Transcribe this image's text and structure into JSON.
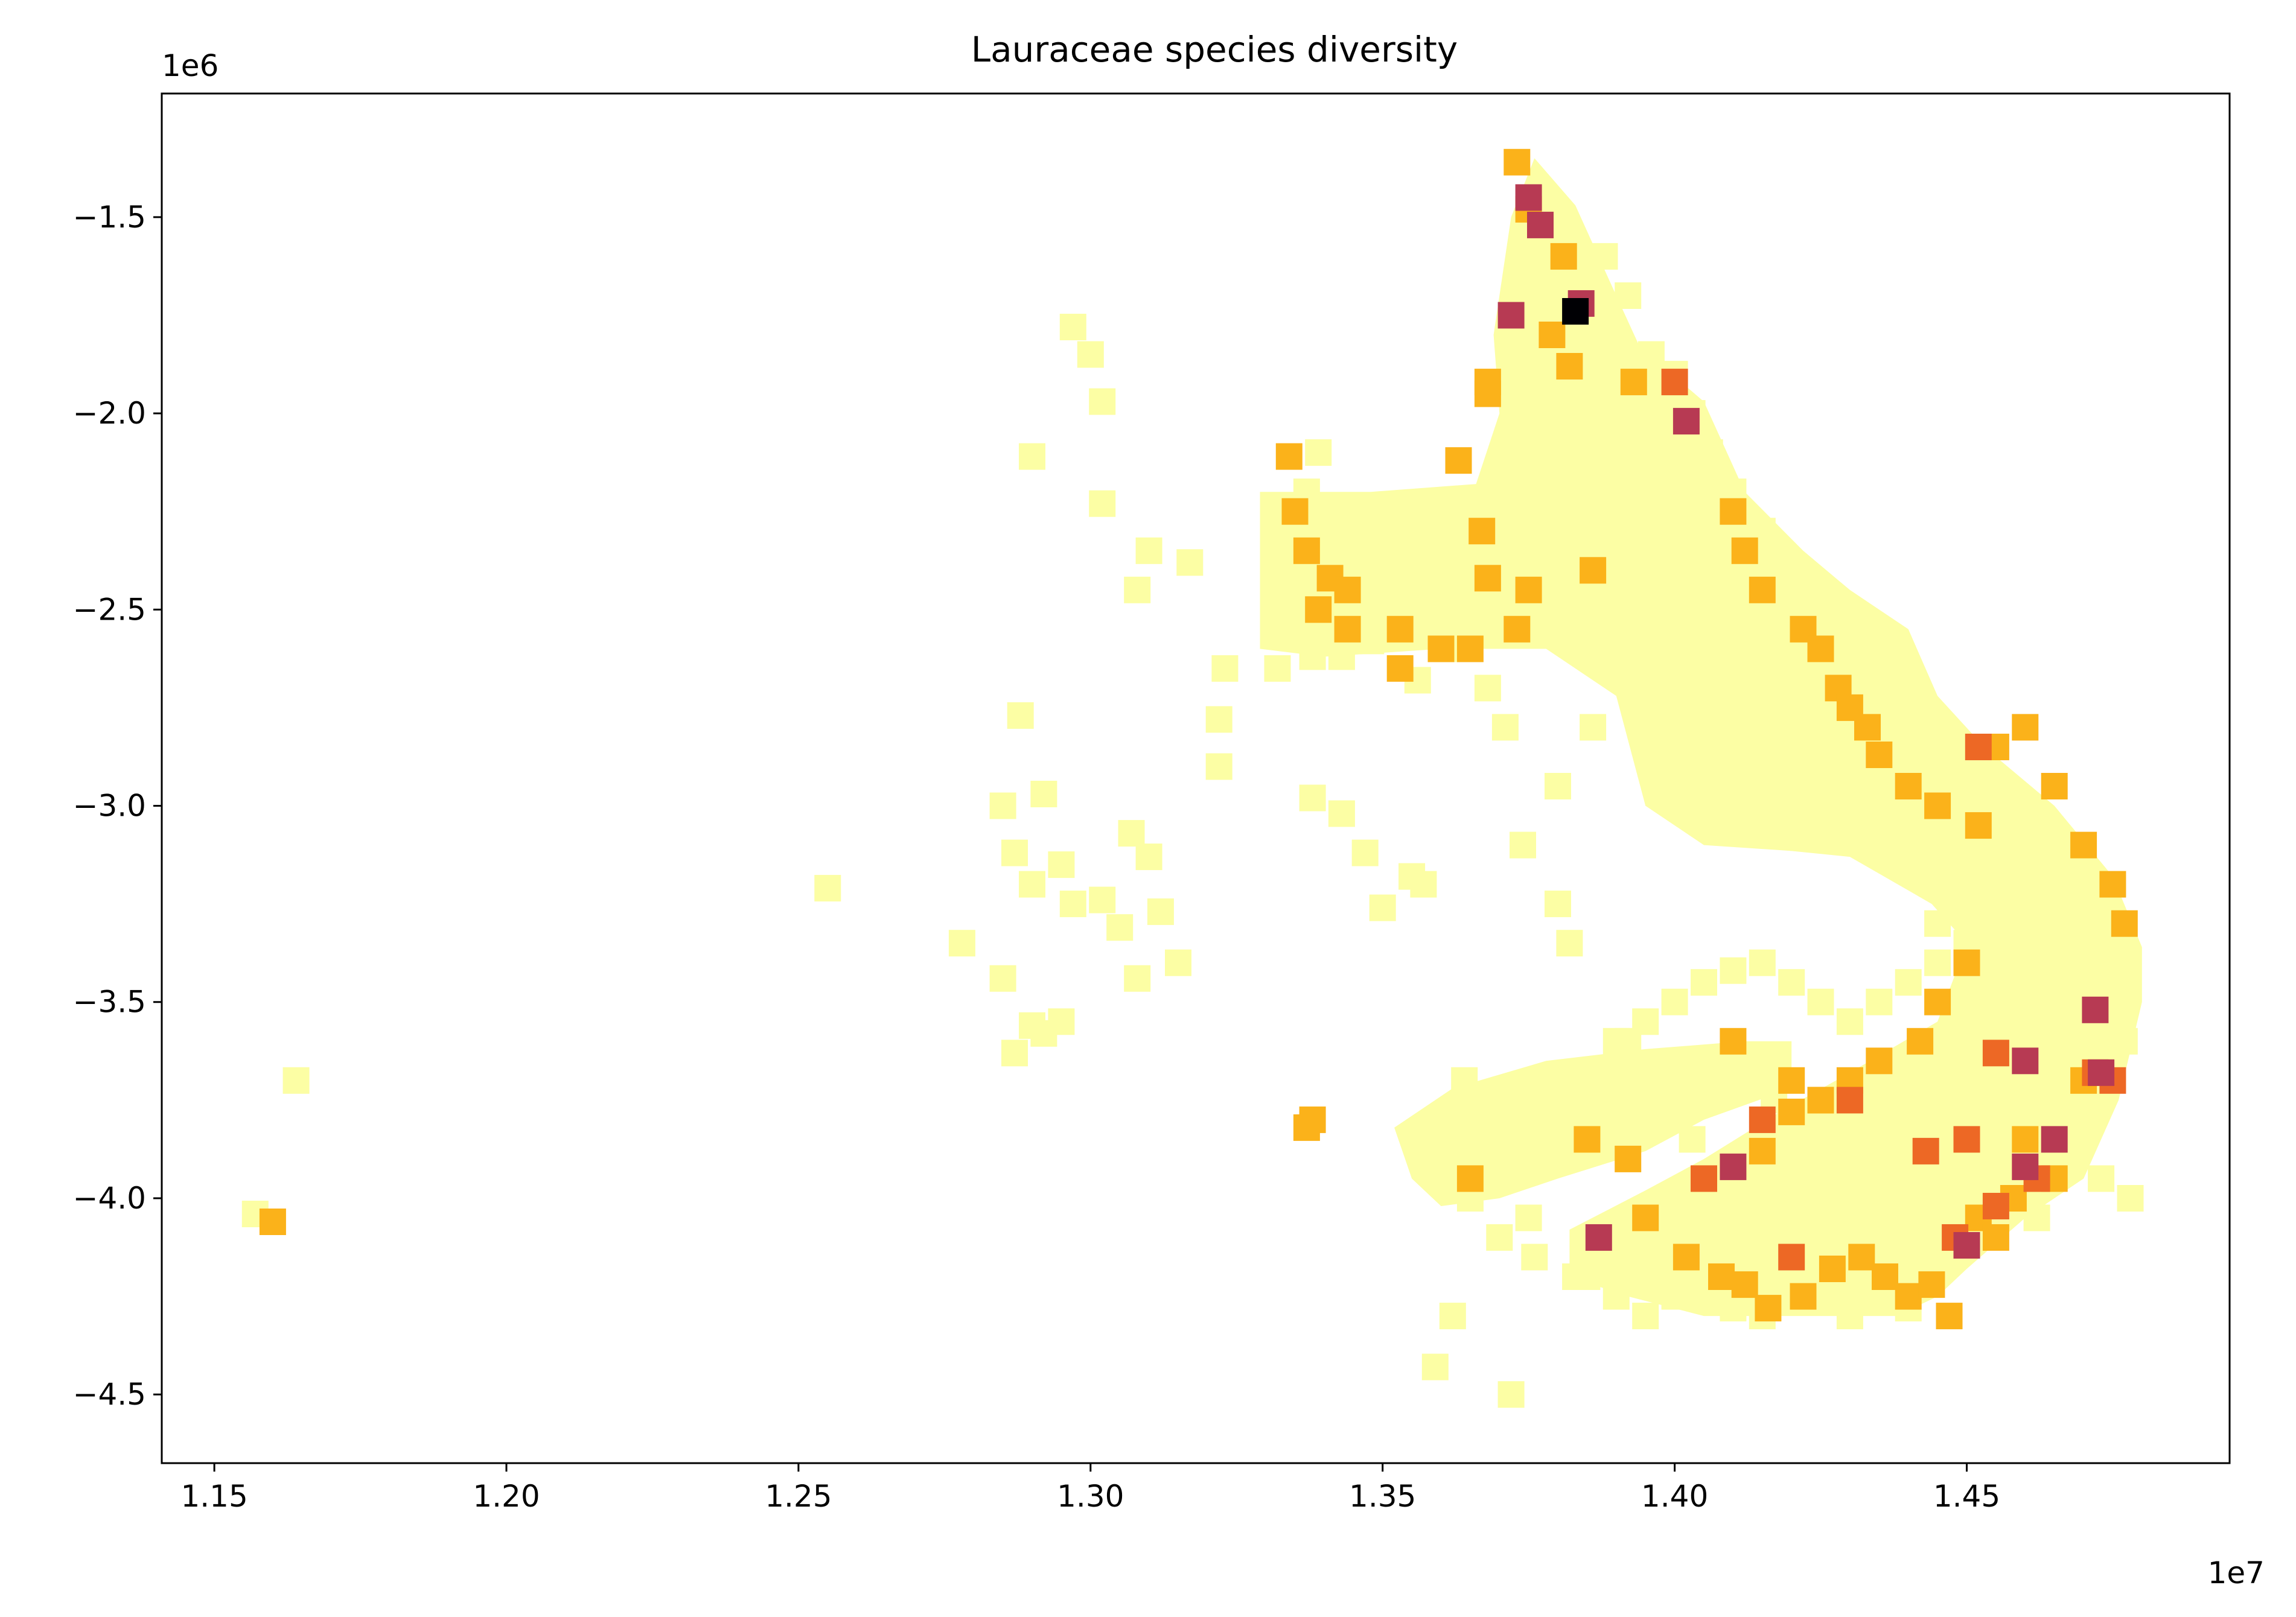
{
  "chart_data": {
    "type": "scatter",
    "title": "Lauraceae species diversity",
    "xlabel": "",
    "ylabel": "",
    "x_offset_label": "1e7",
    "y_offset_label": "1e6",
    "xlim": [
      11.41,
      14.95
    ],
    "ylim": [
      -4.675,
      -1.185
    ],
    "x_ticks": [
      {
        "value": 11.5,
        "label": "1.15"
      },
      {
        "value": 12.0,
        "label": "1.20"
      },
      {
        "value": 12.5,
        "label": "1.25"
      },
      {
        "value": 13.0,
        "label": "1.30"
      },
      {
        "value": 13.5,
        "label": "1.35"
      },
      {
        "value": 14.0,
        "label": "1.40"
      },
      {
        "value": 14.5,
        "label": "1.45"
      }
    ],
    "y_ticks": [
      {
        "value": -1.5,
        "label": "−1.5"
      },
      {
        "value": -2.0,
        "label": "−2.0"
      },
      {
        "value": -2.5,
        "label": "−2.5"
      },
      {
        "value": -3.0,
        "label": "−3.0"
      },
      {
        "value": -3.5,
        "label": "−3.5"
      },
      {
        "value": -4.0,
        "label": "−4.0"
      },
      {
        "value": -4.5,
        "label": "−4.5"
      }
    ],
    "grid": false,
    "legend": "none",
    "colormap": {
      "1": "#fcfea4",
      "2": "#fbb21a",
      "3": "#ed6825",
      "4": "#b73a53",
      "5": "#000004"
    },
    "fill_polygons": [
      [
        [
          13.29,
          -2.2
        ],
        [
          13.48,
          -2.2
        ],
        [
          13.66,
          -2.18
        ],
        [
          13.7,
          -2.0
        ],
        [
          13.69,
          -1.8
        ],
        [
          13.72,
          -1.5
        ],
        [
          13.76,
          -1.35
        ],
        [
          13.83,
          -1.47
        ],
        [
          13.9,
          -1.7
        ],
        [
          13.94,
          -1.83
        ],
        [
          14.05,
          -1.97
        ],
        [
          14.12,
          -2.2
        ],
        [
          14.22,
          -2.35
        ],
        [
          14.3,
          -2.45
        ],
        [
          14.4,
          -2.55
        ],
        [
          14.45,
          -2.72
        ],
        [
          14.53,
          -2.85
        ],
        [
          14.65,
          -3.0
        ],
        [
          14.75,
          -3.18
        ],
        [
          14.8,
          -3.36
        ],
        [
          14.8,
          -3.5
        ],
        [
          14.76,
          -3.75
        ],
        [
          14.7,
          -3.95
        ],
        [
          14.6,
          -4.05
        ],
        [
          14.5,
          -4.18
        ],
        [
          14.45,
          -4.25
        ],
        [
          14.38,
          -4.3
        ],
        [
          14.2,
          -4.3
        ],
        [
          14.05,
          -4.3
        ],
        [
          13.92,
          -4.25
        ],
        [
          13.82,
          -4.2
        ],
        [
          13.82,
          -4.08
        ],
        [
          13.95,
          -3.98
        ],
        [
          14.05,
          -3.9
        ],
        [
          14.18,
          -3.78
        ],
        [
          14.3,
          -3.68
        ],
        [
          14.45,
          -3.55
        ],
        [
          14.5,
          -3.35
        ],
        [
          14.44,
          -3.25
        ],
        [
          14.3,
          -3.13
        ],
        [
          14.1,
          -3.1
        ],
        [
          13.95,
          -3.0
        ],
        [
          13.9,
          -2.72
        ],
        [
          13.78,
          -2.6
        ],
        [
          13.6,
          -2.6
        ],
        [
          13.4,
          -2.62
        ],
        [
          13.29,
          -2.6
        ]
      ],
      [
        [
          13.52,
          -3.82
        ],
        [
          13.62,
          -3.72
        ],
        [
          13.78,
          -3.65
        ],
        [
          13.95,
          -3.62
        ],
        [
          14.12,
          -3.6
        ],
        [
          14.2,
          -3.6
        ],
        [
          14.2,
          -3.72
        ],
        [
          14.05,
          -3.8
        ],
        [
          13.95,
          -3.88
        ],
        [
          13.8,
          -3.95
        ],
        [
          13.7,
          -4.0
        ],
        [
          13.6,
          -4.02
        ],
        [
          13.55,
          -3.95
        ]
      ],
      [
        [
          13.98,
          -2.8
        ],
        [
          14.1,
          -2.85
        ],
        [
          14.22,
          -2.95
        ],
        [
          14.3,
          -3.05
        ],
        [
          14.25,
          -3.12
        ],
        [
          14.05,
          -3.1
        ],
        [
          13.95,
          -3.0
        ]
      ]
    ],
    "series": [
      {
        "value": 1,
        "color": "#fcfea4",
        "x": [
          11.57,
          11.64,
          12.55,
          12.78,
          12.85,
          12.85,
          12.9,
          12.88,
          12.92,
          12.95,
          12.97,
          13.02,
          13.05,
          13.07,
          13.08,
          13.1,
          13.12,
          13.15,
          12.87,
          12.9,
          12.95,
          12.87,
          12.92,
          12.97,
          13.0,
          13.02,
          12.9,
          13.02,
          13.1,
          13.17,
          13.08,
          13.23,
          13.22,
          13.22,
          13.38,
          13.43,
          13.47,
          13.5,
          13.55,
          13.57,
          13.64,
          13.67,
          13.74,
          13.75,
          13.88,
          13.62,
          13.59,
          13.72,
          13.74,
          13.8,
          13.82,
          13.36,
          13.38,
          13.41,
          13.32,
          13.37,
          13.39,
          13.43,
          13.45,
          13.48,
          13.51,
          13.54,
          13.56,
          13.33,
          13.35,
          13.36,
          13.38,
          13.42,
          13.44,
          13.47,
          13.51,
          13.54,
          13.58,
          13.61,
          13.67,
          13.7,
          13.73,
          13.68,
          13.71,
          13.8,
          13.86,
          13.78,
          13.88,
          13.92,
          13.96,
          14.0,
          14.03,
          14.06,
          14.1,
          14.15,
          14.18,
          14.22,
          14.26,
          14.3,
          14.35,
          14.39,
          14.44,
          14.48,
          14.52,
          14.56,
          14.61,
          14.66,
          14.7,
          14.74,
          14.77,
          14.4,
          14.45,
          14.5,
          14.55,
          14.62,
          14.68,
          14.73,
          14.78,
          13.92,
          13.97,
          14.03,
          14.08,
          14.13,
          14.17,
          14.22,
          14.27,
          14.32,
          14.37,
          14.42,
          14.47,
          14.52,
          14.57,
          14.62,
          13.85,
          13.9,
          13.95,
          14.0,
          14.05,
          14.1,
          14.15,
          14.2,
          14.25,
          14.3,
          14.35,
          14.4,
          14.45,
          14.5,
          14.55,
          14.6,
          14.65,
          14.05,
          14.15,
          14.25,
          14.35,
          14.45,
          14.55,
          14.65,
          14.72,
          14.25,
          14.3,
          14.35,
          14.4,
          14.5,
          14.62,
          13.7,
          13.75,
          13.81,
          13.86,
          13.9,
          13.95,
          14.0,
          14.05,
          14.1,
          14.15,
          14.2,
          14.25,
          14.3,
          14.35,
          14.4,
          14.45,
          14.5,
          14.55,
          14.6,
          14.65,
          14.7,
          13.65,
          13.7,
          13.76,
          13.83
        ],
        "y": [
          -4.04,
          -3.7,
          -3.21,
          -3.35,
          -3.0,
          -3.44,
          -3.56,
          -2.77,
          -2.97,
          -3.15,
          -3.25,
          -3.24,
          -3.31,
          -3.07,
          -3.44,
          -3.13,
          -3.27,
          -3.4,
          -3.63,
          -3.2,
          -3.55,
          -3.12,
          -3.58,
          -1.78,
          -1.85,
          -1.97,
          -2.11,
          -2.23,
          -2.35,
          -2.38,
          -2.45,
          -2.65,
          -2.78,
          -2.9,
          -2.98,
          -3.02,
          -3.12,
          -3.26,
          -3.18,
          -3.2,
          -3.7,
          -3.8,
          -3.76,
          -4.05,
          -4.13,
          -4.3,
          -4.43,
          -4.5,
          -3.1,
          -3.25,
          -3.35,
          -2.3,
          -2.5,
          -2.55,
          -2.65,
          -2.2,
          -2.1,
          -2.62,
          -2.4,
          -2.58,
          -2.28,
          -2.5,
          -2.68,
          -2.45,
          -2.3,
          -2.55,
          -2.62,
          -2.43,
          -2.5,
          -2.35,
          -2.3,
          -2.4,
          -2.55,
          -2.6,
          -2.3,
          -2.4,
          -2.55,
          -2.7,
          -2.8,
          -2.95,
          -2.8,
          -1.5,
          -1.6,
          -1.7,
          -1.85,
          -1.9,
          -2.0,
          -2.1,
          -2.2,
          -2.3,
          -2.4,
          -2.45,
          -2.55,
          -2.6,
          -2.7,
          -2.8,
          -2.9,
          -2.95,
          -3.0,
          -3.1,
          -3.2,
          -3.3,
          -3.4,
          -3.5,
          -3.6,
          -3.75,
          -3.85,
          -3.95,
          -4.05,
          -3.7,
          -3.85,
          -3.95,
          -4.0,
          -3.6,
          -3.75,
          -3.85,
          -3.95,
          -4.0,
          -3.75,
          -3.8,
          -3.9,
          -4.0,
          -4.05,
          -3.7,
          -3.8,
          -3.9,
          -4.0,
          -4.05,
          -4.2,
          -4.25,
          -4.3,
          -4.25,
          -4.2,
          -4.28,
          -4.3,
          -4.25,
          -4.2,
          -4.3,
          -4.22,
          -4.28,
          -4.15,
          -4.05,
          -3.9,
          -3.85,
          -3.75,
          -2.7,
          -2.85,
          -3.0,
          -3.1,
          -3.3,
          -3.45,
          -3.55,
          -3.65,
          -3.05,
          -2.95,
          -2.9,
          -2.85,
          -2.9,
          -3.05,
          -3.85,
          -3.75,
          -3.7,
          -3.68,
          -3.6,
          -3.55,
          -3.5,
          -3.45,
          -3.42,
          -3.4,
          -3.45,
          -3.5,
          -3.55,
          -3.5,
          -3.45,
          -3.4,
          -3.35,
          -3.3,
          -3.35,
          -3.4,
          -3.5,
          -4.0,
          -4.1,
          -4.15,
          -4.2
        ]
      },
      {
        "value": 2,
        "color": "#fbb21a",
        "x": [
          11.6,
          13.73,
          13.75,
          13.81,
          13.79,
          13.93,
          13.68,
          13.82,
          13.63,
          13.68,
          13.86,
          13.34,
          13.35,
          13.37,
          13.41,
          13.44,
          13.39,
          13.44,
          13.53,
          13.6,
          13.65,
          13.73,
          13.75,
          13.67,
          13.53,
          14.1,
          14.12,
          14.15,
          14.22,
          14.25,
          14.28,
          14.3,
          14.33,
          14.35,
          14.4,
          14.45,
          14.52,
          14.55,
          14.6,
          14.65,
          14.7,
          14.75,
          14.77,
          14.5,
          14.45,
          14.42,
          14.35,
          14.3,
          14.25,
          14.2,
          14.15,
          13.95,
          14.02,
          14.08,
          14.12,
          14.16,
          14.22,
          14.27,
          14.32,
          14.36,
          14.4,
          14.44,
          14.47,
          14.52,
          14.55,
          14.58,
          13.38,
          13.37,
          13.85,
          13.92,
          13.65,
          14.1,
          14.2,
          14.25,
          13.68,
          14.6,
          14.65,
          14.7
        ],
        "y": [
          -4.06,
          -1.36,
          -1.48,
          -1.6,
          -1.8,
          -1.92,
          -1.92,
          -1.88,
          -2.12,
          -1.95,
          -2.4,
          -2.11,
          -2.25,
          -2.35,
          -2.42,
          -2.45,
          -2.5,
          -2.55,
          -2.55,
          -2.6,
          -2.6,
          -2.55,
          -2.45,
          -2.3,
          -2.65,
          -2.25,
          -2.35,
          -2.45,
          -2.55,
          -2.6,
          -2.7,
          -2.75,
          -2.8,
          -2.87,
          -2.95,
          -3.0,
          -3.05,
          -2.85,
          -2.8,
          -2.95,
          -3.1,
          -3.2,
          -3.3,
          -3.4,
          -3.5,
          -3.6,
          -3.65,
          -3.7,
          -3.75,
          -3.78,
          -3.88,
          -4.05,
          -4.15,
          -4.2,
          -4.22,
          -4.28,
          -4.25,
          -4.18,
          -4.15,
          -4.2,
          -4.25,
          -4.22,
          -4.3,
          -4.05,
          -4.1,
          -4.0,
          -3.8,
          -3.82,
          -3.85,
          -3.9,
          -3.95,
          -3.6,
          -3.7,
          -3.75,
          -2.42,
          -3.85,
          -3.95,
          -3.7
        ]
      },
      {
        "value": 3,
        "color": "#ed6825",
        "x": [
          14.0,
          14.55,
          14.5,
          14.72,
          14.75,
          14.62,
          14.55,
          14.48,
          14.2,
          14.05,
          14.15,
          14.3,
          14.43,
          14.52
        ],
        "y": [
          -1.92,
          -3.63,
          -3.85,
          -3.68,
          -3.7,
          -3.95,
          -4.02,
          -4.1,
          -4.15,
          -3.95,
          -3.8,
          -3.75,
          -3.88,
          -2.85
        ]
      },
      {
        "value": 4,
        "color": "#b73a53",
        "x": [
          13.75,
          13.77,
          13.84,
          14.02,
          13.72,
          14.73,
          14.6,
          14.65,
          14.72,
          14.5,
          13.87,
          14.1,
          14.6
        ],
        "y": [
          -1.45,
          -1.52,
          -1.72,
          -2.02,
          -1.75,
          -3.68,
          -3.92,
          -3.85,
          -3.52,
          -4.12,
          -4.1,
          -3.92,
          -3.65
        ]
      },
      {
        "value": 5,
        "color": "#000004",
        "x": [
          13.83
        ],
        "y": [
          -1.74
        ]
      }
    ]
  }
}
